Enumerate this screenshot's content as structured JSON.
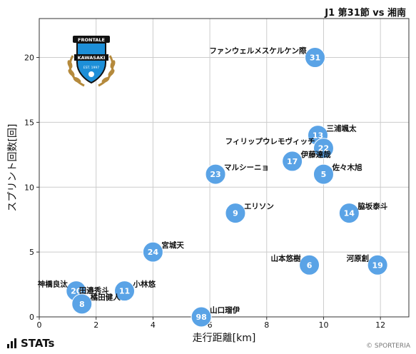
{
  "header": {
    "title": "J1 第31節 vs 湘南"
  },
  "footer": {
    "brand": "STATs",
    "copyright": "© SPORTERIA"
  },
  "badge": {
    "top": "FRONTALE",
    "middle": "KAWASAKI",
    "est": "EST. 1997",
    "colors": {
      "blue": "#1d8fd8",
      "black": "#111111",
      "gold": "#b58a3c"
    }
  },
  "colors": {
    "point": "#5aa3e6",
    "point_stroke": "#ffffff",
    "grid": "#cccccc",
    "frame": "#333333"
  },
  "chart_data": {
    "type": "scatter",
    "title": "",
    "xlabel": "走行距離[km]",
    "ylabel": "スプリント回数[回]",
    "xlim": [
      0,
      13
    ],
    "ylim": [
      0,
      23
    ],
    "xticks": [
      0,
      2,
      4,
      6,
      8,
      10,
      12
    ],
    "yticks": [
      0,
      5,
      10,
      15,
      20
    ],
    "grid": true,
    "points": [
      {
        "number": "31",
        "name": "ファンウェルメスケルケン際",
        "x": 9.7,
        "y": 20,
        "label_pos": "left"
      },
      {
        "number": "13",
        "name": "三浦颯太",
        "x": 9.8,
        "y": 14,
        "label_pos": "right"
      },
      {
        "number": "22",
        "name": "フィリップウレモヴィッチ",
        "x": 10.0,
        "y": 13,
        "label_pos": "left"
      },
      {
        "number": "17",
        "name": "伊藤達哉",
        "x": 8.9,
        "y": 12,
        "label_pos": "right"
      },
      {
        "number": "5",
        "name": "佐々木旭",
        "x": 10.0,
        "y": 11,
        "label_pos": "right"
      },
      {
        "number": "23",
        "name": "マルシーニョ",
        "x": 6.2,
        "y": 11,
        "label_pos": "right"
      },
      {
        "number": "9",
        "name": "エリソン",
        "x": 6.9,
        "y": 8,
        "label_pos": "right"
      },
      {
        "number": "14",
        "name": "脇坂泰斗",
        "x": 10.9,
        "y": 8,
        "label_pos": "right"
      },
      {
        "number": "24",
        "name": "宮城天",
        "x": 4.0,
        "y": 5,
        "label_pos": "right"
      },
      {
        "number": "6",
        "name": "山本悠樹",
        "x": 9.5,
        "y": 4,
        "label_pos": "left"
      },
      {
        "number": "19",
        "name": "河原創",
        "x": 11.9,
        "y": 4,
        "label_pos": "left"
      },
      {
        "number": "11",
        "name": "小林悠",
        "x": 3.0,
        "y": 2,
        "label_pos": "right"
      },
      {
        "number": "20",
        "name": "神橋良汰",
        "x": 1.3,
        "y": 2,
        "label_pos": "left"
      },
      {
        "number": "8",
        "name": "橘田健人",
        "x": 1.5,
        "y": 1,
        "label_pos": "right"
      },
      {
        "number": "98",
        "name": "山口瑠伊",
        "x": 5.7,
        "y": 0,
        "label_pos": "right"
      },
      {
        "number": "",
        "name": "田邉秀斗",
        "x": 1.4,
        "y": 1.5,
        "label_pos": "right"
      }
    ]
  }
}
